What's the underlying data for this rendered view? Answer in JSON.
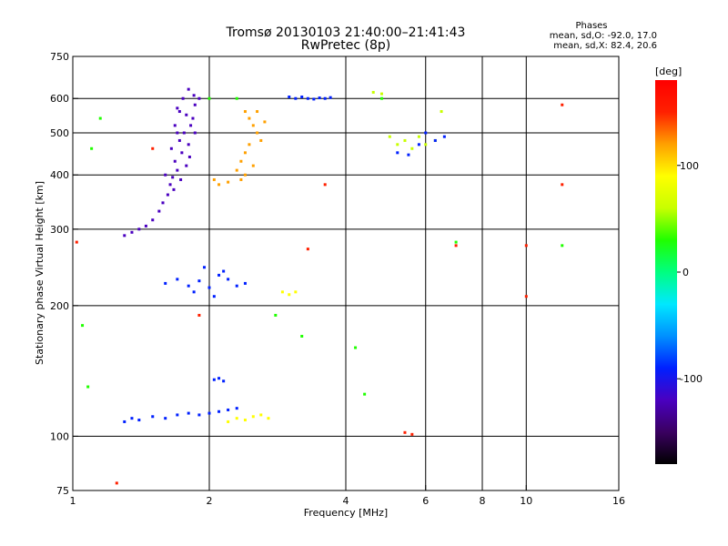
{
  "chart_data": {
    "type": "scatter",
    "title": "Tromsø 20130103 21:40:00–21:41:43",
    "subtitle": "RwPretec (8p)",
    "xlabel": "Frequency [MHz]",
    "ylabel": "Stationary phase Virtual Height [km]",
    "x_scale": "log",
    "y_scale": "log",
    "xlim": [
      1,
      16
    ],
    "ylim": [
      75,
      750
    ],
    "x_ticks": [
      1,
      2,
      4,
      6,
      8,
      10,
      16
    ],
    "x_tick_labels": [
      "1",
      "2",
      "4",
      "6",
      "8",
      "10",
      "16"
    ],
    "x_gridlines": [
      2,
      4,
      6,
      8,
      10
    ],
    "y_ticks": [
      75,
      100,
      200,
      300,
      400,
      500,
      600,
      750
    ],
    "y_tick_labels": [
      "75",
      "100",
      "200",
      "300",
      "400",
      "500",
      "600",
      "750"
    ],
    "y_gridlines": [
      100,
      200,
      300,
      400,
      500,
      600
    ],
    "grid": true,
    "phase_stats": {
      "heading": "Phases",
      "line_o": "mean, sd,O: -92.0, 17.0",
      "line_x": "mean, sd,X:  82.4, 20.6"
    },
    "colorbar": {
      "label": "[deg]",
      "range": [
        -180,
        180
      ],
      "ticks": [
        100,
        0,
        -100
      ],
      "tick_labels": [
        "100",
        "0",
        "-100"
      ],
      "palette": [
        "#000000",
        "#3a0060",
        "#4a00c0",
        "#0020ff",
        "#0090ff",
        "#00e8ff",
        "#00ff80",
        "#20ff00",
        "#c8ff00",
        "#ffff00",
        "#ffa000",
        "#ff2000",
        "#ff0000"
      ]
    },
    "series": [
      {
        "phase": -110,
        "points": [
          [
            1.75,
            600
          ],
          [
            1.8,
            630
          ],
          [
            1.85,
            610
          ],
          [
            1.7,
            570
          ],
          [
            1.78,
            550
          ],
          [
            1.82,
            520
          ],
          [
            1.76,
            500
          ],
          [
            1.72,
            480
          ],
          [
            1.8,
            470
          ],
          [
            1.74,
            450
          ],
          [
            1.68,
            430
          ],
          [
            1.7,
            410
          ],
          [
            1.66,
            395
          ],
          [
            1.64,
            380
          ],
          [
            1.62,
            360
          ],
          [
            1.58,
            345
          ],
          [
            1.55,
            330
          ],
          [
            1.5,
            315
          ],
          [
            1.45,
            305
          ],
          [
            1.4,
            300
          ],
          [
            1.35,
            295
          ],
          [
            1.3,
            290
          ],
          [
            1.68,
            520
          ],
          [
            1.72,
            560
          ],
          [
            1.86,
            580
          ],
          [
            1.84,
            540
          ],
          [
            1.78,
            420
          ],
          [
            1.6,
            400
          ],
          [
            1.65,
            460
          ],
          [
            1.7,
            500
          ],
          [
            1.9,
            600
          ],
          [
            1.86,
            500
          ],
          [
            1.81,
            440
          ],
          [
            1.73,
            390
          ],
          [
            1.67,
            370
          ]
        ]
      },
      {
        "phase": -95,
        "points": [
          [
            3.0,
            605
          ],
          [
            3.1,
            600
          ],
          [
            3.2,
            605
          ],
          [
            3.3,
            600
          ],
          [
            3.4,
            598
          ],
          [
            3.5,
            602
          ],
          [
            3.6,
            600
          ],
          [
            3.7,
            603
          ]
        ]
      },
      {
        "phase": -105,
        "points": [
          [
            1.6,
            225
          ],
          [
            1.7,
            230
          ],
          [
            1.8,
            222
          ],
          [
            1.9,
            228
          ],
          [
            2.0,
            220
          ],
          [
            2.1,
            235
          ],
          [
            2.2,
            230
          ],
          [
            2.3,
            222
          ],
          [
            2.4,
            225
          ],
          [
            1.95,
            245
          ],
          [
            2.05,
            210
          ],
          [
            1.85,
            215
          ],
          [
            2.15,
            240
          ]
        ]
      },
      {
        "phase": -105,
        "points": [
          [
            1.3,
            108
          ],
          [
            1.35,
            110
          ],
          [
            1.4,
            109
          ],
          [
            1.5,
            111
          ],
          [
            1.6,
            110
          ],
          [
            1.7,
            112
          ],
          [
            1.8,
            113
          ],
          [
            1.9,
            112
          ],
          [
            2.0,
            113
          ],
          [
            2.1,
            114
          ],
          [
            2.2,
            115
          ],
          [
            2.3,
            116
          ],
          [
            2.05,
            135
          ],
          [
            2.1,
            136
          ],
          [
            2.15,
            134
          ]
        ]
      },
      {
        "phase": 110,
        "points": [
          [
            2.4,
            560
          ],
          [
            2.45,
            540
          ],
          [
            2.5,
            520
          ],
          [
            2.55,
            500
          ],
          [
            2.45,
            470
          ],
          [
            2.4,
            450
          ],
          [
            2.35,
            430
          ],
          [
            2.3,
            410
          ],
          [
            2.35,
            390
          ],
          [
            2.4,
            400
          ],
          [
            2.5,
            420
          ],
          [
            2.6,
            480
          ],
          [
            2.65,
            530
          ],
          [
            2.55,
            560
          ],
          [
            2.05,
            390
          ],
          [
            2.1,
            380
          ],
          [
            2.2,
            385
          ]
        ]
      },
      {
        "phase": 100,
        "points": [
          [
            2.2,
            108
          ],
          [
            2.3,
            110
          ],
          [
            2.4,
            109
          ],
          [
            2.5,
            111
          ],
          [
            2.6,
            112
          ],
          [
            2.7,
            110
          ],
          [
            2.9,
            215
          ],
          [
            3.0,
            212
          ],
          [
            3.1,
            215
          ]
        ]
      },
      {
        "phase": 60,
        "points": [
          [
            4.6,
            620
          ],
          [
            4.8,
            615
          ],
          [
            5.0,
            490
          ],
          [
            5.2,
            470
          ],
          [
            5.4,
            480
          ],
          [
            5.6,
            460
          ],
          [
            5.8,
            490
          ],
          [
            6.0,
            470
          ],
          [
            6.3,
            480
          ],
          [
            6.5,
            560
          ]
        ]
      },
      {
        "phase": -90,
        "points": [
          [
            5.2,
            450
          ],
          [
            5.5,
            445
          ],
          [
            5.8,
            470
          ],
          [
            6.0,
            500
          ],
          [
            6.3,
            480
          ],
          [
            6.6,
            490
          ]
        ]
      },
      {
        "phase": 150,
        "points": [
          [
            1.02,
            280
          ],
          [
            1.5,
            460
          ],
          [
            3.6,
            380
          ],
          [
            3.3,
            270
          ],
          [
            7.0,
            275
          ],
          [
            10.0,
            275
          ],
          [
            12.0,
            580
          ],
          [
            12.0,
            380
          ],
          [
            10.0,
            210
          ],
          [
            1.9,
            190
          ],
          [
            5.4,
            102
          ],
          [
            5.6,
            101
          ],
          [
            1.25,
            78
          ]
        ]
      },
      {
        "phase": 20,
        "points": [
          [
            1.05,
            180
          ],
          [
            1.08,
            130
          ],
          [
            1.1,
            460
          ],
          [
            1.15,
            540
          ],
          [
            2.3,
            600
          ],
          [
            2.0,
            600
          ],
          [
            2.8,
            190
          ],
          [
            3.2,
            170
          ],
          [
            4.2,
            160
          ],
          [
            4.4,
            125
          ],
          [
            4.8,
            600
          ],
          [
            7.0,
            280
          ],
          [
            12.0,
            275
          ]
        ]
      }
    ]
  }
}
